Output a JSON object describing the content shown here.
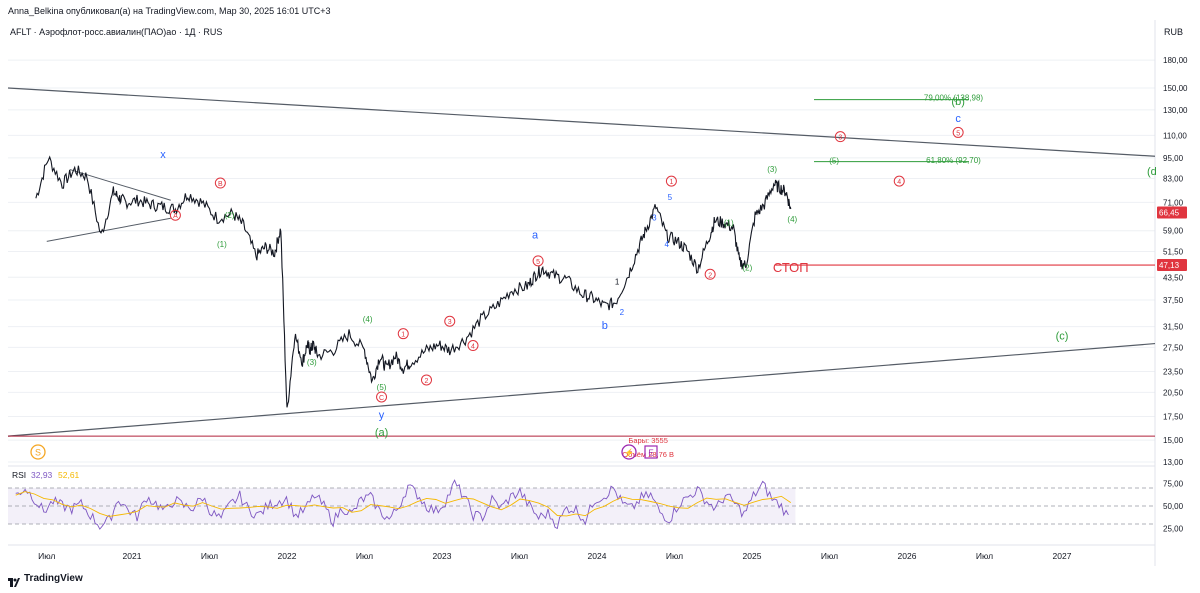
{
  "header": {
    "publisher": "Anna_Belkina опубликовал(а) на TradingView.com, Мар 30, 2025 16:01 UTC+3",
    "symbol": "AFLT · Аэрофлот-росс.авиалин(ПАО)ао · 1Д · RUS",
    "currency": "RUB"
  },
  "footer": {
    "brand": "TradingView"
  },
  "colors": {
    "price": "#131722",
    "green": "#2e9c3a",
    "blue": "#2962ff",
    "red": "#e0353f",
    "stop": "#e0353f",
    "rsi": "#7e57c2",
    "rsi_ma": "#f5b800",
    "grid": "#eef0f4"
  },
  "chart_data": {
    "type": "line",
    "title": "AFLT · Аэрофлот-росс.авиалин(ПАО)ао · 1Д · RUS",
    "scale": "log",
    "ylim": [
      13,
      200
    ],
    "y_ticks": [
      "180,00",
      "150,00",
      "130,00",
      "110,00",
      "95,00",
      "83,00",
      "71,00",
      "59,00",
      "51,50",
      "43,50",
      "37,50",
      "31,50",
      "27,50",
      "23,50",
      "20,50",
      "17,50",
      "15,00",
      "13,00"
    ],
    "x_ticks": [
      "Июл",
      "2021",
      "Июл",
      "2022",
      "Июл",
      "2023",
      "Июл",
      "2024",
      "Июл",
      "2025",
      "Июл",
      "2026",
      "Июл",
      "2027"
    ],
    "series": [
      {
        "name": "AFLT close",
        "x": [
          2020.38,
          2020.46,
          2020.55,
          2020.63,
          2020.71,
          2020.8,
          2020.88,
          2020.92,
          2020.96,
          2021.04,
          2021.12,
          2021.2,
          2021.28,
          2021.36,
          2021.45,
          2021.55,
          2021.65,
          2021.72,
          2021.8,
          2021.86,
          2021.92,
          2021.96,
          2022.0,
          2022.05,
          2022.1,
          2022.13,
          2022.15,
          2022.17,
          2022.2,
          2022.3,
          2022.4,
          2022.5,
          2022.55,
          2022.6,
          2022.64,
          2022.7,
          2022.75,
          2022.8,
          2022.9,
          2022.98,
          2023.05,
          2023.15,
          2023.25,
          2023.35,
          2023.45,
          2023.55,
          2023.6,
          2023.65,
          2023.72,
          2023.8,
          2023.9,
          2023.97,
          2024.05,
          2024.12,
          2024.2,
          2024.27,
          2024.32,
          2024.38,
          2024.45,
          2024.52,
          2024.58,
          2024.65,
          2024.72,
          2024.76,
          2024.82,
          2024.88,
          2024.92,
          2024.96,
          2025.02,
          2025.08,
          2025.14,
          2025.18,
          2025.22,
          2025.25
        ],
        "values": [
          73,
          95,
          80,
          88,
          84,
          57,
          76,
          73,
          71,
          72,
          70,
          69,
          68,
          75,
          71,
          64,
          66,
          61,
          50,
          53,
          51,
          60,
          18,
          30,
          25,
          28,
          27,
          28,
          26,
          27,
          30,
          27,
          22,
          26,
          24,
          26,
          24,
          25,
          27,
          28,
          27,
          29,
          33,
          36,
          40,
          41,
          44,
          46,
          44,
          43,
          39,
          38,
          36,
          37,
          44,
          53,
          60,
          69,
          57,
          55,
          52,
          46,
          56,
          63,
          62,
          60,
          48,
          47,
          65,
          70,
          80,
          78,
          76,
          68
        ]
      }
    ],
    "rsi": {
      "label": "RSI",
      "value": "32,93",
      "ma_value": "52,61",
      "levels": [
        70,
        50,
        30
      ],
      "y_ticks": [
        "75,00",
        "50,00",
        "25,00"
      ],
      "values": [
        62,
        70,
        58,
        44,
        55,
        50,
        47,
        52,
        40,
        28,
        34,
        58,
        46,
        38,
        60,
        53,
        44,
        57,
        50,
        48,
        60,
        42,
        36,
        52,
        61,
        45,
        40,
        50,
        55,
        58,
        39,
        46,
        62,
        50,
        33,
        48,
        41,
        57,
        60,
        44,
        35,
        49,
        72,
        63,
        50,
        44,
        55,
        75,
        61,
        40,
        38,
        57,
        48,
        60,
        66,
        50,
        37,
        42,
        29,
        48,
        46,
        34,
        57,
        61,
        70,
        52,
        47,
        59,
        62,
        43,
        35,
        52,
        60,
        68,
        55,
        47,
        62,
        53,
        41,
        61,
        74,
        58,
        50,
        33
      ]
    },
    "info_labels": {
      "bars": "Бары: 3555",
      "volume": "Объём 28,76 B"
    },
    "annotations": {
      "fib_79": "79,00% (138,98)",
      "fib_61": "61,80% (92,70)",
      "price_last": "66,45",
      "price_stop": "47,13",
      "stop_label": "СТОП",
      "wave_x": "x",
      "wave_y": "y",
      "wave_a": "a",
      "wave_b": "b",
      "wave_c": "c",
      "wave_gb": "(b)",
      "wave_ga": "(a)",
      "wave_gc": "(c)",
      "wave_gd": "(d",
      "circ_A": "A",
      "circ_B": "B",
      "circ_C": "C",
      "circ_1": "1",
      "circ_2": "2",
      "circ_3": "3",
      "circ_4": "4",
      "circ_5": "5",
      "p1": "(1)",
      "p2": "(2)",
      "p3": "(3)",
      "p4": "(4)",
      "p5": "(5)",
      "n1": "1",
      "n2": "2",
      "n3": "3",
      "n4": "4",
      "n5": "5",
      "icon_s": "S",
      "icon_e": "E"
    }
  }
}
